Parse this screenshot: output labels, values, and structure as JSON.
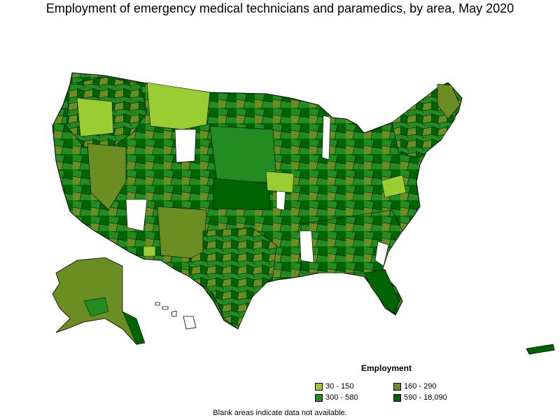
{
  "title": "Employment of emergency medical technicians and paramedics, by area, May 2020",
  "legend": {
    "title": "Employment",
    "items": [
      {
        "label": "30 - 150",
        "color": "#9acd32"
      },
      {
        "label": "160 - 290",
        "color": "#6b8e23"
      },
      {
        "label": "300 - 580",
        "color": "#228b22"
      },
      {
        "label": "590 - 18,090",
        "color": "#006400"
      }
    ]
  },
  "footnote": "Blank areas indicate data not available.",
  "colors": {
    "outline": "#000000",
    "no_data": "#ffffff"
  }
}
